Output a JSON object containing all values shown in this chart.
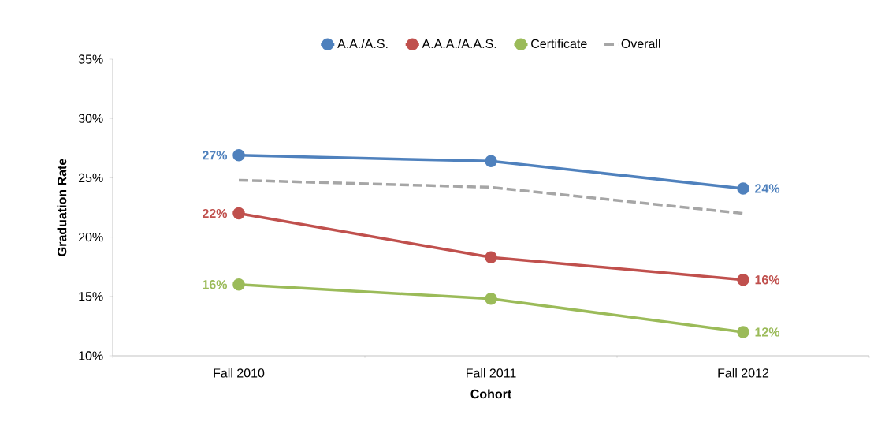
{
  "chart_data": {
    "type": "line",
    "xlabel": "Cohort",
    "ylabel": "Graduation Rate",
    "categories": [
      "Fall 2010",
      "Fall 2011",
      "Fall 2012"
    ],
    "series": [
      {
        "name": "A.A./A.S.",
        "color": "#4f81bd",
        "values": [
          26.9,
          26.4,
          24.1
        ],
        "value_labels": [
          "27%",
          null,
          "24%"
        ]
      },
      {
        "name": "A.A.A./A.A.S.",
        "color": "#c0504d",
        "values": [
          22.0,
          18.3,
          16.4
        ],
        "value_labels": [
          "22%",
          null,
          "16%"
        ]
      },
      {
        "name": "Certificate",
        "color": "#9bbb59",
        "values": [
          16.0,
          14.8,
          12.0
        ],
        "value_labels": [
          "16%",
          null,
          "12%"
        ]
      },
      {
        "name": "Overall",
        "color": "#a6a6a6",
        "values": [
          24.8,
          24.2,
          22.0
        ],
        "line_style": "dashed",
        "marker": "none"
      }
    ],
    "ylim": [
      10,
      35
    ],
    "yticks": [
      {
        "value": 10,
        "label": "10%"
      },
      {
        "value": 15,
        "label": "15%"
      },
      {
        "value": 20,
        "label": "20%"
      },
      {
        "value": 25,
        "label": "25%"
      },
      {
        "value": 30,
        "label": "30%"
      },
      {
        "value": 35,
        "label": "35%"
      }
    ],
    "marker": "circle",
    "line_style": "solid",
    "grid": false,
    "legend": "top"
  }
}
